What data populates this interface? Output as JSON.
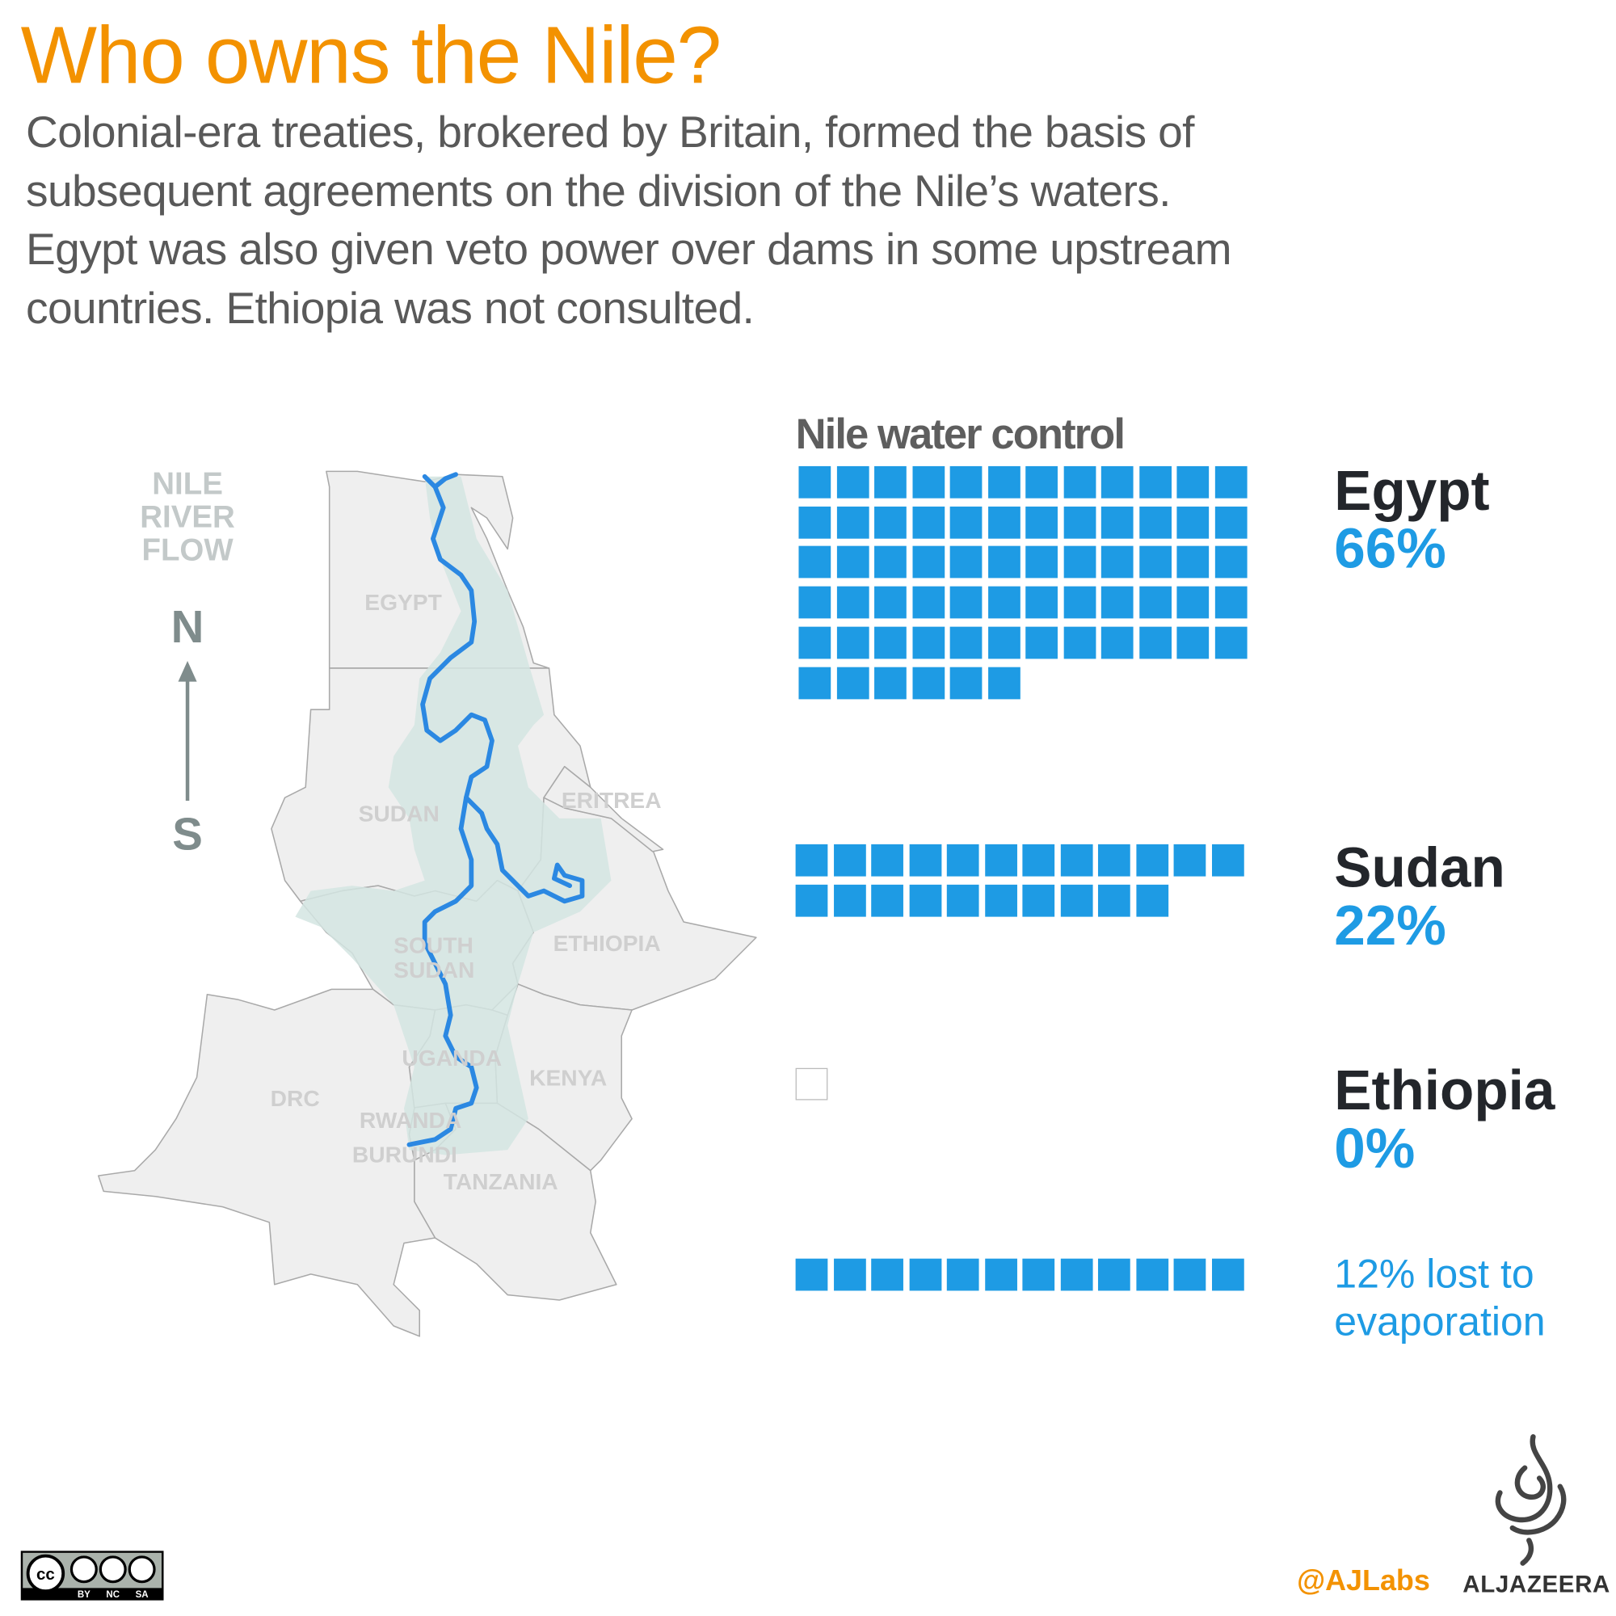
{
  "title": "Who owns the Nile?",
  "intro": [
    "Colonial-era treaties, brokered by Britain, formed the basis of",
    "subsequent agreements on the division of the Nile’s waters.",
    "Egypt was also given veto power over dams in some upstream",
    "countries. Ethiopia was not consulted."
  ],
  "map": {
    "flow_label": [
      "NILE",
      "RIVER",
      "FLOW"
    ],
    "north": "N",
    "south": "S",
    "countries": [
      "EGYPT",
      "SUDAN",
      "ERITREA",
      "ETHIOPIA",
      "SOUTH",
      "SUDAN",
      "UGANDA",
      "KENYA",
      "DRC",
      "RWANDA",
      "BURUNDI",
      "TANZANIA"
    ],
    "colors": {
      "land": "#efefef",
      "basin": "#d3e5e2",
      "river": "#2b88e2",
      "border": "#a9a9a9"
    }
  },
  "chart_data": {
    "type": "waffle",
    "title": "Nile water control",
    "unit": "%",
    "series": [
      {
        "name": "Egypt",
        "label": "66%",
        "value": 66
      },
      {
        "name": "Sudan",
        "label": "22%",
        "value": 22
      },
      {
        "name": "Ethiopia",
        "label": "0%",
        "value": 0
      },
      {
        "name": "12% lost to evaporation",
        "value": 12
      }
    ],
    "colors": {
      "filled": "#1e9be4",
      "text_dark": "#23262b",
      "title": "#f39200"
    }
  },
  "evaporation": [
    "12% lost to",
    "evaporation"
  ],
  "footer": {
    "license_parts": [
      "BY",
      "NC",
      "SA"
    ],
    "handle": "@AJLabs",
    "brand": "ALJAZEERA"
  }
}
